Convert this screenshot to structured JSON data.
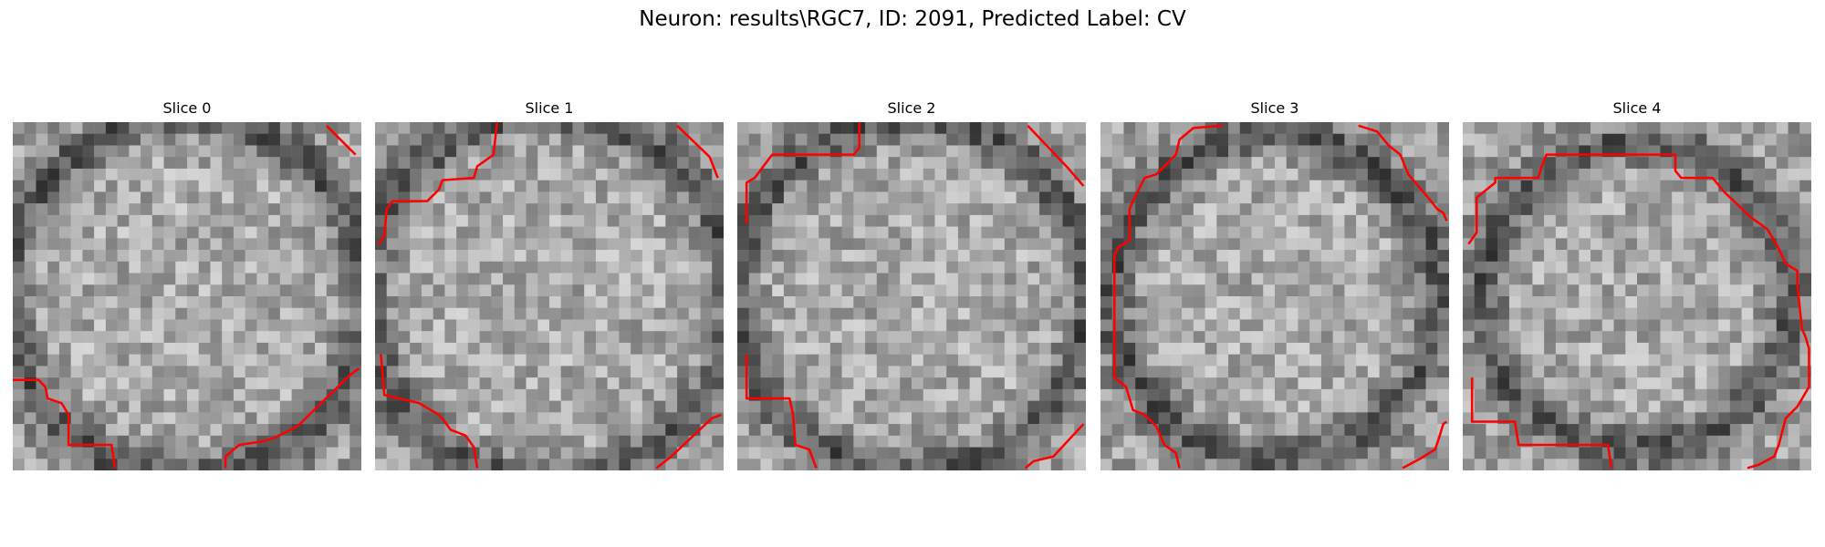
{
  "figure": {
    "title": "Neuron: results\\RGC7, ID: 2091, Predicted Label: CV"
  },
  "grid_size": 30,
  "contour_color": "#ff0000",
  "panels": [
    {
      "title": "Slice 0",
      "contours": [
        [
          [
            0.0,
            22.2
          ],
          [
            2.2,
            22.2
          ],
          [
            2.8,
            22.8
          ],
          [
            3.0,
            23.8
          ],
          [
            4.2,
            24.2
          ],
          [
            4.8,
            25.2
          ],
          [
            4.8,
            27.8
          ],
          [
            8.5,
            27.8
          ],
          [
            8.8,
            29.8
          ]
        ],
        [
          [
            18.3,
            29.8
          ],
          [
            18.3,
            28.8
          ],
          [
            19.5,
            27.8
          ],
          [
            21.5,
            27.5
          ],
          [
            22.5,
            27.2
          ],
          [
            24.5,
            26.2
          ],
          [
            29.0,
            21.8
          ],
          [
            29.8,
            21.2
          ]
        ],
        [
          [
            27.0,
            0.3
          ],
          [
            29.5,
            2.8
          ]
        ]
      ]
    },
    {
      "title": "Slice 1",
      "contours": [
        [
          [
            0.3,
            10.5
          ],
          [
            0.8,
            9.8
          ],
          [
            1.0,
            7.5
          ],
          [
            1.5,
            6.8
          ],
          [
            4.5,
            6.8
          ],
          [
            5.5,
            5.8
          ],
          [
            5.8,
            5.0
          ],
          [
            8.5,
            4.8
          ],
          [
            8.8,
            3.8
          ],
          [
            10.2,
            2.8
          ],
          [
            10.5,
            0.0
          ]
        ],
        [
          [
            26.0,
            0.3
          ],
          [
            28.8,
            3.0
          ],
          [
            29.5,
            4.8
          ]
        ],
        [
          [
            0.5,
            20.0
          ],
          [
            0.8,
            23.5
          ],
          [
            3.8,
            24.2
          ],
          [
            4.8,
            24.8
          ],
          [
            5.5,
            25.2
          ],
          [
            6.0,
            25.8
          ],
          [
            6.5,
            26.5
          ],
          [
            7.8,
            27.0
          ],
          [
            8.5,
            28.0
          ],
          [
            8.8,
            29.8
          ]
        ],
        [
          [
            24.2,
            29.8
          ],
          [
            25.5,
            28.8
          ],
          [
            29.0,
            25.5
          ],
          [
            29.8,
            25.2
          ]
        ]
      ]
    },
    {
      "title": "Slice 2",
      "contours": [
        [
          [
            0.8,
            8.8
          ],
          [
            0.8,
            5.2
          ],
          [
            1.5,
            4.8
          ],
          [
            3.0,
            2.8
          ],
          [
            10.0,
            2.8
          ],
          [
            10.5,
            2.2
          ],
          [
            10.5,
            0.0
          ]
        ],
        [
          [
            25.0,
            0.3
          ],
          [
            28.5,
            4.0
          ],
          [
            29.8,
            5.5
          ]
        ],
        [
          [
            0.8,
            20.0
          ],
          [
            0.8,
            23.8
          ],
          [
            4.5,
            23.8
          ],
          [
            4.8,
            25.2
          ],
          [
            5.0,
            27.8
          ],
          [
            6.2,
            28.2
          ],
          [
            6.8,
            29.8
          ]
        ],
        [
          [
            24.8,
            29.8
          ],
          [
            25.5,
            29.2
          ],
          [
            27.2,
            28.8
          ],
          [
            29.8,
            26.0
          ]
        ]
      ]
    },
    {
      "title": "Slice 3",
      "contours": [
        [
          [
            10.5,
            0.3
          ],
          [
            8.0,
            0.5
          ],
          [
            6.8,
            1.5
          ],
          [
            6.5,
            2.8
          ],
          [
            5.5,
            3.8
          ],
          [
            4.8,
            4.5
          ],
          [
            3.8,
            4.8
          ],
          [
            2.8,
            6.8
          ],
          [
            2.5,
            7.5
          ],
          [
            2.5,
            10.2
          ],
          [
            1.5,
            10.8
          ],
          [
            1.2,
            11.5
          ],
          [
            1.2,
            22.0
          ],
          [
            2.2,
            22.8
          ],
          [
            2.8,
            24.8
          ],
          [
            3.8,
            25.2
          ],
          [
            4.8,
            26.2
          ],
          [
            5.5,
            27.8
          ],
          [
            6.5,
            28.5
          ],
          [
            6.8,
            29.8
          ]
        ],
        [
          [
            22.2,
            0.3
          ],
          [
            23.8,
            0.8
          ],
          [
            24.8,
            2.0
          ],
          [
            25.8,
            2.8
          ],
          [
            26.5,
            4.5
          ],
          [
            28.2,
            6.5
          ],
          [
            29.0,
            7.5
          ],
          [
            29.5,
            7.8
          ],
          [
            29.8,
            8.5
          ]
        ],
        [
          [
            26.0,
            29.8
          ],
          [
            27.5,
            29.0
          ],
          [
            28.8,
            28.2
          ],
          [
            29.2,
            27.0
          ],
          [
            29.5,
            26.0
          ],
          [
            29.8,
            25.8
          ]
        ]
      ]
    },
    {
      "title": "Slice 4",
      "contours": [
        [
          [
            0.5,
            10.5
          ],
          [
            1.2,
            9.5
          ],
          [
            1.2,
            6.5
          ],
          [
            2.8,
            5.2
          ],
          [
            2.8,
            4.8
          ],
          [
            6.5,
            4.8
          ],
          [
            6.8,
            3.8
          ],
          [
            7.2,
            2.8
          ],
          [
            18.3,
            2.8
          ],
          [
            18.3,
            4.2
          ],
          [
            18.8,
            4.8
          ],
          [
            21.5,
            4.8
          ],
          [
            22.5,
            6.0
          ],
          [
            24.8,
            8.2
          ],
          [
            26.2,
            9.2
          ],
          [
            27.0,
            10.5
          ],
          [
            27.8,
            12.2
          ],
          [
            28.8,
            12.8
          ],
          [
            28.8,
            14.0
          ],
          [
            29.2,
            17.8
          ],
          [
            29.5,
            18.5
          ],
          [
            29.8,
            19.5
          ],
          [
            29.8,
            22.8
          ],
          [
            28.8,
            24.5
          ],
          [
            27.8,
            25.5
          ],
          [
            27.2,
            27.8
          ],
          [
            26.8,
            28.8
          ],
          [
            25.5,
            29.5
          ],
          [
            24.5,
            29.8
          ]
        ],
        [
          [
            0.8,
            22.0
          ],
          [
            0.8,
            25.8
          ],
          [
            4.5,
            25.8
          ],
          [
            4.8,
            27.8
          ],
          [
            12.5,
            27.8
          ],
          [
            12.8,
            29.8
          ]
        ]
      ]
    }
  ]
}
